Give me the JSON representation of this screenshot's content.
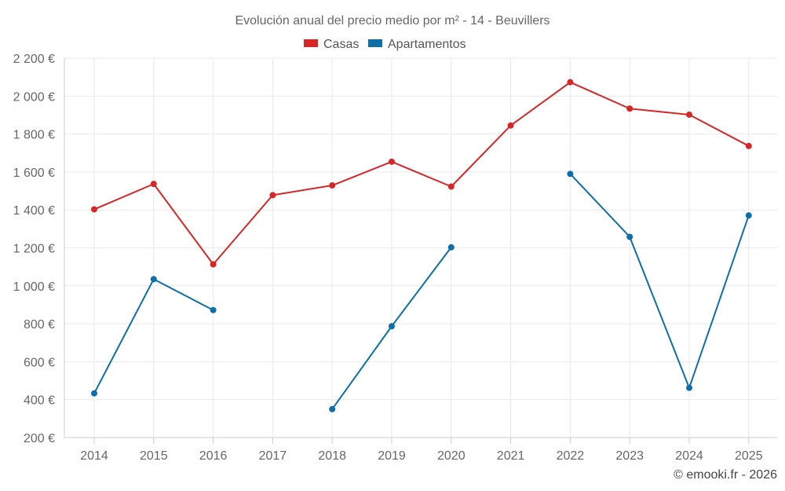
{
  "chart_data": {
    "type": "line",
    "title": "Evolución anual del precio medio por m² - 14 - Beuvillers",
    "categories": [
      "2014",
      "2015",
      "2016",
      "2017",
      "2018",
      "2019",
      "2020",
      "2021",
      "2022",
      "2023",
      "2024",
      "2025"
    ],
    "series": [
      {
        "name": "Casas",
        "color": "#d62728",
        "values": [
          1403,
          1537,
          1113,
          1478,
          1529,
          1654,
          1523,
          1845,
          2073,
          1934,
          1902,
          1737
        ]
      },
      {
        "name": "Apartamentos",
        "color": "#0e6fa8",
        "values": [
          433,
          1035,
          872,
          null,
          350,
          787,
          1203,
          null,
          1590,
          1258,
          462,
          1371
        ]
      }
    ],
    "ylim": [
      200,
      2200
    ],
    "yticks": [
      200,
      400,
      600,
      800,
      1000,
      1200,
      1400,
      1600,
      1800,
      2000,
      2200
    ],
    "ytick_labels": [
      "200 €",
      "400 €",
      "600 €",
      "800 €",
      "1 000 €",
      "1 200 €",
      "1 400 €",
      "1 600 €",
      "1 800 €",
      "2 000 €",
      "2 200 €"
    ],
    "xlabel": "",
    "ylabel": "",
    "grid": true,
    "legend_position": "top-center"
  },
  "credit": "© emooki.fr - 2026"
}
